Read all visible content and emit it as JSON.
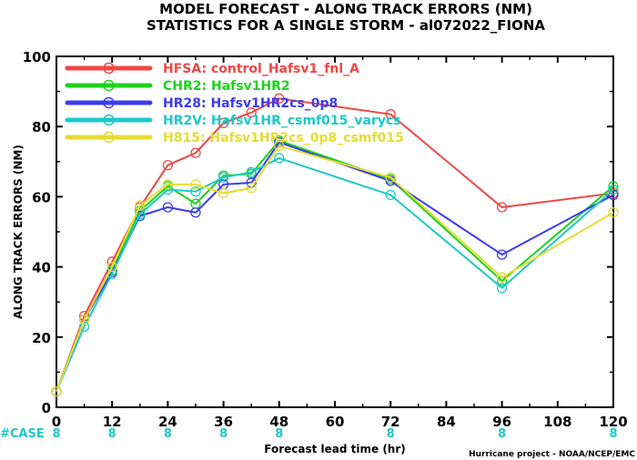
{
  "titles": {
    "line1": "MODEL FORECAST - ALONG TRACK ERRORS (NM)",
    "line2": "STATISTICS FOR A SINGLE STORM - al072022_FIONA"
  },
  "credit": "Hurricane project - NOAA/NCEP/EMC",
  "case_label": "#CASE",
  "case_color": "#1ec8c8",
  "chart_data": {
    "type": "line",
    "title": "MODEL FORECAST - ALONG TRACK ERRORS (NM)",
    "subtitle": "STATISTICS FOR A SINGLE STORM - al072022_FIONA",
    "xlabel": "Forecast lead time (hr)",
    "ylabel": "ALONG TRACK ERRORS (NM)",
    "xlim": [
      0,
      120
    ],
    "ylim": [
      0,
      100
    ],
    "x_ticks": [
      0,
      12,
      24,
      36,
      48,
      60,
      72,
      84,
      96,
      108,
      120
    ],
    "y_ticks": [
      0,
      20,
      40,
      60,
      80,
      100
    ],
    "grid": false,
    "legend_position": "top-left",
    "x": [
      0,
      6,
      12,
      18,
      24,
      30,
      36,
      42,
      48,
      72,
      96,
      120
    ],
    "case_x": [
      0,
      12,
      24,
      36,
      48,
      72,
      96,
      120
    ],
    "case_counts": [
      "8",
      "8",
      "8",
      "8",
      "8",
      "8",
      "8",
      "8"
    ],
    "series": [
      {
        "name": "HFSA: control_Hafsv1_fnl_A",
        "color": "#f04646",
        "values": [
          4.5,
          26,
          41.5,
          57,
          69,
          72.5,
          81,
          84,
          88,
          83.5,
          57,
          61
        ]
      },
      {
        "name": "CHR2: Hafsv1HR2",
        "color": "#1ed21e",
        "values": [
          4.5,
          25,
          39,
          56,
          63,
          58,
          66,
          66.5,
          76,
          65,
          36,
          63
        ]
      },
      {
        "name": "HR28: Hafsv1HR2cs_0p8",
        "color": "#3c3cf0",
        "values": [
          4.5,
          25,
          38.5,
          54.5,
          57,
          55.5,
          63.5,
          64,
          75.5,
          64.5,
          43.5,
          60.5
        ]
      },
      {
        "name": "HR2V: Hafsv1HR_csmf015_varycs",
        "color": "#1ec8c8",
        "values": [
          4.5,
          23,
          38,
          55,
          62,
          61.5,
          65.5,
          67,
          71,
          60.5,
          34,
          62
        ]
      },
      {
        "name": "H815: Hafsv1HR2cs_0p8_csmf015",
        "color": "#e6dc32",
        "values": [
          4.5,
          25,
          40,
          57.5,
          63.5,
          63.5,
          61,
          62.5,
          74.5,
          65.5,
          37,
          55.5
        ]
      }
    ]
  }
}
